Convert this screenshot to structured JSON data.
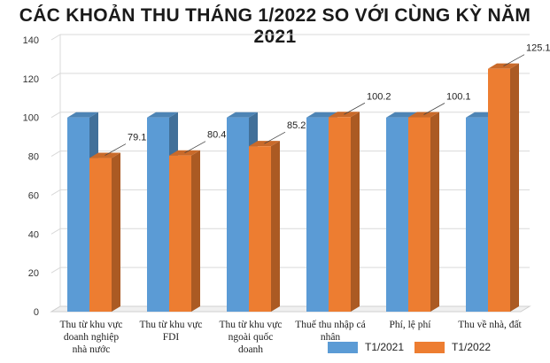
{
  "chart_data": {
    "type": "bar",
    "title": "CÁC KHOẢN THU THÁNG 1/2022 SO VỚI CÙNG KỲ NĂM 2021",
    "categories": [
      [
        "Thu từ khu vực",
        "doanh nghiệp",
        "nhà nước"
      ],
      [
        "Thu từ khu vực",
        "FDI"
      ],
      [
        "Thu từ khu vực",
        "ngoài quốc",
        "doanh"
      ],
      [
        "Thuế thu nhập cá",
        "nhân"
      ],
      [
        "Phí, lệ phí"
      ],
      [
        "Thu về nhà, đất"
      ]
    ],
    "series": [
      {
        "name": "T1/2021",
        "values": [
          100,
          100,
          100,
          100,
          100,
          100
        ],
        "color": "#5b9bd5"
      },
      {
        "name": "T1/2022",
        "values": [
          79.1,
          80.4,
          85.2,
          100.2,
          100.1,
          125.1
        ],
        "color": "#ed7d31"
      }
    ],
    "data_labels": [
      "79.1",
      "80.4",
      "85.2",
      "100.2",
      "100.1",
      "125.1"
    ],
    "yticks": [
      0,
      20,
      40,
      60,
      80,
      100,
      120,
      140
    ],
    "ylim": [
      0,
      140
    ],
    "grid": true,
    "legend_position": "bottom-right",
    "bar_style": "3d"
  }
}
